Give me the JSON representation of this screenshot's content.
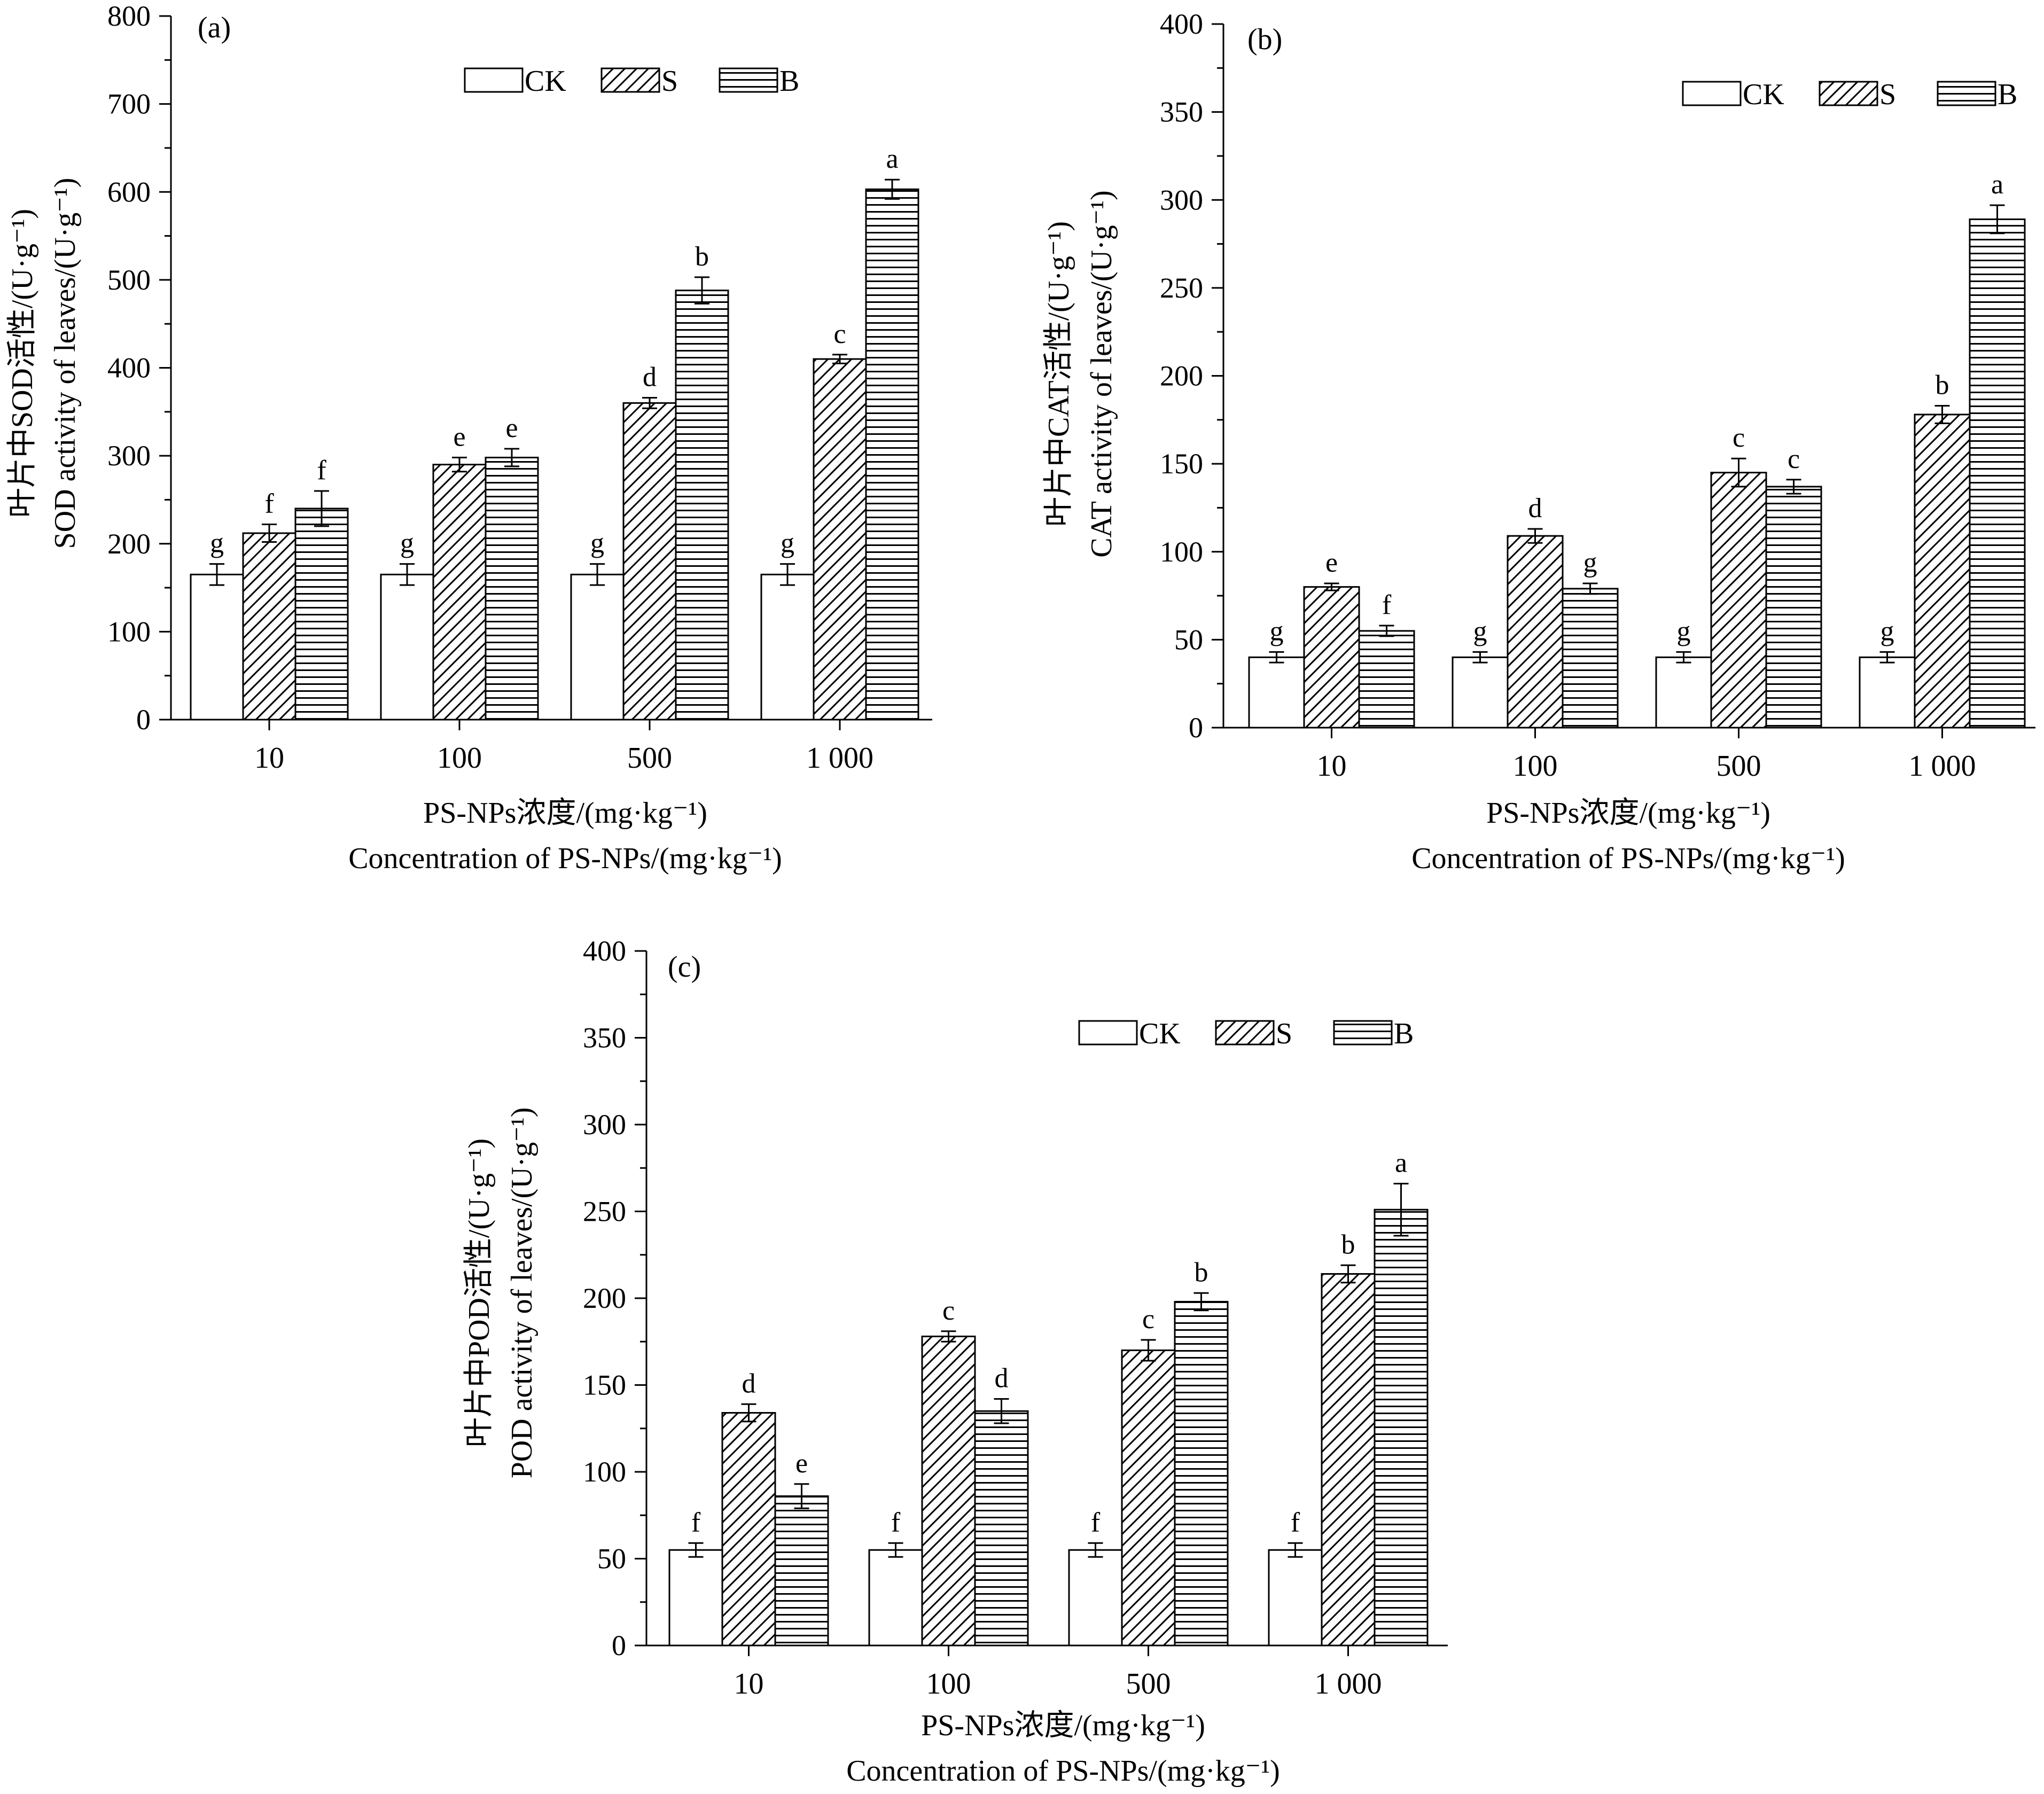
{
  "legend_labels": [
    "CK",
    "S",
    "B"
  ],
  "chart_data": [
    {
      "type": "bar",
      "panel_label": "(a)",
      "categories": [
        "10",
        "100",
        "500",
        "1 000"
      ],
      "series": [
        {
          "name": "CK",
          "values": [
            165,
            165,
            165,
            165
          ],
          "errors": [
            12,
            12,
            12,
            12
          ],
          "letters": [
            "g",
            "g",
            "g",
            "g"
          ]
        },
        {
          "name": "S",
          "values": [
            212,
            290,
            360,
            410
          ],
          "errors": [
            10,
            8,
            6,
            5
          ],
          "letters": [
            "f",
            "e",
            "d",
            "c"
          ]
        },
        {
          "name": "B",
          "values": [
            240,
            298,
            488,
            603
          ],
          "errors": [
            20,
            10,
            15,
            11
          ],
          "letters": [
            "f",
            "e",
            "b",
            "a"
          ]
        }
      ],
      "ylim": [
        0,
        800
      ],
      "yticks": [
        0,
        100,
        200,
        300,
        400,
        500,
        600,
        700,
        800
      ],
      "ylabel_cn": "叶片中SOD活性/(U·g⁻¹)",
      "ylabel_en": "SOD activity of leaves/(U·g⁻¹)",
      "xlabel_cn": "PS-NPs浓度/(mg·kg⁻¹)",
      "xlabel_en": "Concentration of PS-NPs/(mg·kg⁻¹)",
      "legend_position": "top-center"
    },
    {
      "type": "bar",
      "panel_label": "(b)",
      "categories": [
        "10",
        "100",
        "500",
        "1 000"
      ],
      "series": [
        {
          "name": "CK",
          "values": [
            40,
            40,
            40,
            40
          ],
          "errors": [
            3,
            3,
            3,
            3
          ],
          "letters": [
            "g",
            "g",
            "g",
            "g"
          ]
        },
        {
          "name": "S",
          "values": [
            80,
            109,
            145,
            178
          ],
          "errors": [
            2,
            4,
            8,
            5
          ],
          "letters": [
            "e",
            "d",
            "c",
            "b"
          ]
        },
        {
          "name": "B",
          "values": [
            55,
            79,
            137,
            289
          ],
          "errors": [
            3,
            3,
            4,
            8
          ],
          "letters": [
            "f",
            "g",
            "c",
            "a"
          ]
        }
      ],
      "ylim": [
        0,
        400
      ],
      "yticks": [
        0,
        50,
        100,
        150,
        200,
        250,
        300,
        350,
        400
      ],
      "ylabel_cn": "叶片中CAT活性/(U·g⁻¹)",
      "ylabel_en": "CAT activity of leaves/(U·g⁻¹)",
      "xlabel_cn": "PS-NPs浓度/(mg·kg⁻¹)",
      "xlabel_en": "Concentration of PS-NPs/(mg·kg⁻¹)",
      "legend_position": "top-right"
    },
    {
      "type": "bar",
      "panel_label": "(c)",
      "categories": [
        "10",
        "100",
        "500",
        "1 000"
      ],
      "series": [
        {
          "name": "CK",
          "values": [
            55,
            55,
            55,
            55
          ],
          "errors": [
            4,
            4,
            4,
            4
          ],
          "letters": [
            "f",
            "f",
            "f",
            "f"
          ]
        },
        {
          "name": "S",
          "values": [
            134,
            178,
            170,
            214
          ],
          "errors": [
            5,
            3,
            6,
            5
          ],
          "letters": [
            "d",
            "c",
            "c",
            "b"
          ]
        },
        {
          "name": "B",
          "values": [
            86,
            135,
            198,
            251
          ],
          "errors": [
            7,
            7,
            5,
            15
          ],
          "letters": [
            "e",
            "d",
            "b",
            "a"
          ]
        }
      ],
      "ylim": [
        0,
        400
      ],
      "yticks": [
        0,
        50,
        100,
        150,
        200,
        250,
        300,
        350,
        400
      ],
      "ylabel_cn": "叶片中POD活性/(U·g⁻¹)",
      "ylabel_en": "POD activity of leaves/(U·g⁻¹)",
      "xlabel_cn": "PS-NPs浓度/(mg·kg⁻¹)",
      "xlabel_en": "Concentration of PS-NPs/(mg·kg⁻¹)",
      "legend_position": "top-center"
    }
  ]
}
